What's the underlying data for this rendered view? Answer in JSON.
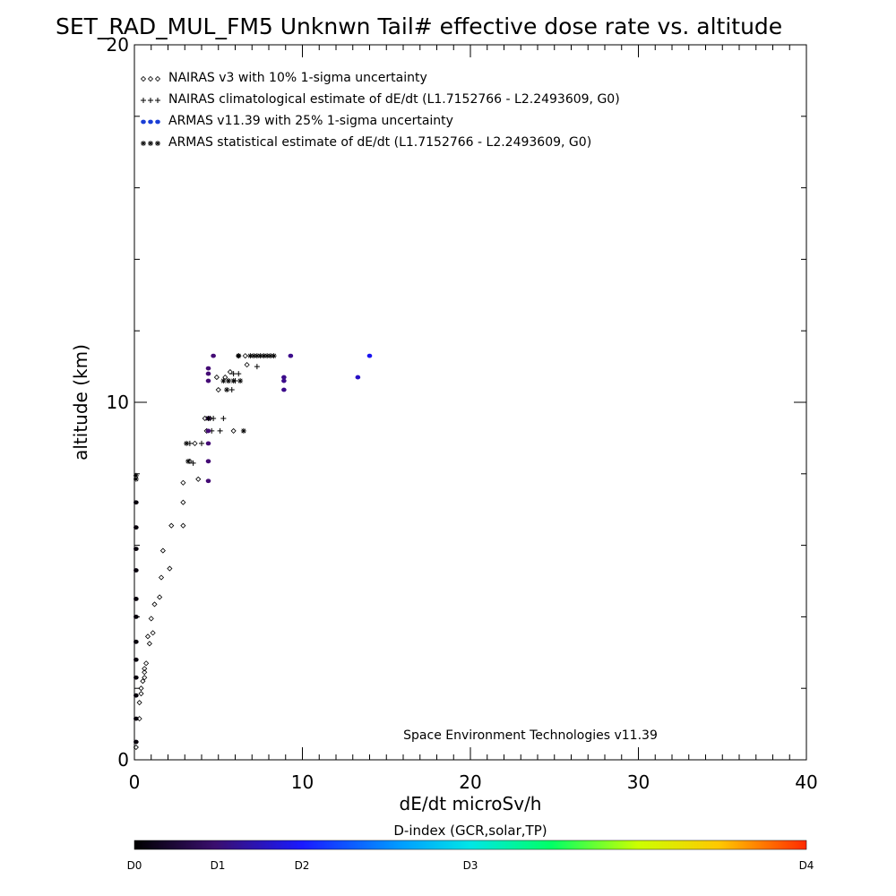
{
  "chart_data": {
    "type": "scatter",
    "title": "SET_RAD_MUL_FM5 Unknwn Tail#  effective dose rate vs. altitude",
    "xlabel": "dE/dt microSv/h",
    "ylabel": "altitude (km)",
    "xlim": [
      0,
      40
    ],
    "ylim": [
      0,
      20
    ],
    "x_ticks": [
      "0",
      "10",
      "20",
      "30",
      "40"
    ],
    "y_ticks": [
      "0",
      "10",
      "20"
    ],
    "grid": false,
    "legend_position": "top-left",
    "credit": "Space Environment Technologies v11.39",
    "colorbar": {
      "title": "D-index (GCR,solar,TP)",
      "ticks": [
        {
          "label": "D0",
          "value": 0
        },
        {
          "label": "D1",
          "value": 1
        },
        {
          "label": "D2",
          "value": 2
        },
        {
          "label": "D3",
          "value": 3
        },
        {
          "label": "D4",
          "value": 4
        }
      ]
    },
    "series": [
      {
        "name": "NAIRAS v3 with 10% 1-sigma uncertainty",
        "marker": "diamond",
        "color": "#000000",
        "points": [
          [
            0.1,
            0.35
          ],
          [
            0.3,
            1.15
          ],
          [
            0.3,
            1.6
          ],
          [
            0.4,
            1.85
          ],
          [
            0.4,
            2.0
          ],
          [
            0.5,
            2.2
          ],
          [
            0.6,
            2.3
          ],
          [
            0.6,
            2.45
          ],
          [
            0.6,
            2.55
          ],
          [
            0.7,
            2.7
          ],
          [
            0.9,
            3.25
          ],
          [
            0.8,
            3.45
          ],
          [
            1.1,
            3.55
          ],
          [
            1.0,
            3.95
          ],
          [
            1.2,
            4.35
          ],
          [
            1.5,
            4.55
          ],
          [
            1.6,
            5.1
          ],
          [
            2.1,
            5.35
          ],
          [
            1.7,
            5.85
          ],
          [
            2.2,
            6.55
          ],
          [
            2.9,
            6.55
          ],
          [
            2.9,
            7.2
          ],
          [
            2.9,
            7.75
          ],
          [
            3.8,
            7.85
          ],
          [
            3.3,
            8.35
          ],
          [
            3.6,
            8.85
          ],
          [
            4.3,
            9.2
          ],
          [
            4.2,
            9.55
          ],
          [
            5.0,
            10.35
          ],
          [
            4.9,
            10.7
          ],
          [
            5.4,
            10.7
          ],
          [
            5.7,
            10.85
          ],
          [
            5.9,
            9.2
          ],
          [
            6.2,
            11.3
          ],
          [
            6.6,
            11.3
          ],
          [
            6.7,
            11.05
          ],
          [
            4.5,
            9.55
          ]
        ]
      },
      {
        "name": "NAIRAS climatological estimate of dE/dt (L1.7152766 - L2.2493609, G0)",
        "marker": "plus",
        "color": "#000000",
        "points": [
          [
            3.5,
            8.3
          ],
          [
            3.3,
            8.85
          ],
          [
            4.0,
            8.85
          ],
          [
            4.6,
            9.2
          ],
          [
            5.1,
            9.2
          ],
          [
            4.7,
            9.55
          ],
          [
            5.3,
            9.55
          ],
          [
            5.8,
            10.35
          ],
          [
            5.6,
            10.6
          ],
          [
            6.0,
            10.6
          ],
          [
            6.2,
            10.8
          ],
          [
            5.9,
            10.8
          ],
          [
            7.3,
            11.0
          ]
        ]
      },
      {
        "name": "ARMAS v11.39 with 25% 1-sigma uncertainty",
        "marker": "dot",
        "color": "#1a3ed6",
        "points": [
          [
            0.1,
            7.2
          ],
          [
            0.1,
            6.5
          ],
          [
            0.1,
            5.9
          ],
          [
            0.1,
            5.3
          ],
          [
            0.1,
            4.5
          ],
          [
            0.1,
            4.0
          ],
          [
            0.1,
            3.3
          ],
          [
            0.1,
            2.8
          ],
          [
            0.1,
            2.3
          ],
          [
            0.1,
            1.8
          ],
          [
            0.1,
            1.15
          ],
          [
            0.1,
            0.5
          ],
          [
            4.4,
            7.8
          ],
          [
            4.4,
            8.35
          ],
          [
            4.4,
            8.85
          ],
          [
            4.4,
            9.2
          ],
          [
            4.4,
            9.55
          ],
          [
            4.4,
            10.6
          ],
          [
            4.4,
            10.8
          ],
          [
            4.4,
            10.95
          ],
          [
            4.7,
            11.3
          ],
          [
            8.9,
            10.35
          ],
          [
            8.9,
            10.6
          ],
          [
            8.9,
            10.7
          ],
          [
            9.3,
            11.3
          ],
          [
            13.3,
            10.7
          ],
          [
            14.0,
            11.3
          ]
        ],
        "d_index": [
          0.1,
          0.1,
          0.1,
          0.1,
          0.1,
          0.1,
          0.1,
          0.1,
          0.1,
          0.1,
          0.1,
          0.1,
          1.05,
          1.05,
          1.05,
          1.05,
          1.05,
          1.05,
          1.05,
          1.05,
          1.05,
          1.2,
          1.2,
          1.2,
          1.2,
          1.6,
          1.9
        ]
      },
      {
        "name": "ARMAS statistical estimate of dE/dt (L1.7152766 - L2.2493609, G0)",
        "marker": "asterisk",
        "color": "#000000",
        "points": [
          [
            0.1,
            7.95
          ],
          [
            0.1,
            7.85
          ],
          [
            3.1,
            8.85
          ],
          [
            3.2,
            8.35
          ],
          [
            4.4,
            9.55
          ],
          [
            5.5,
            10.35
          ],
          [
            5.3,
            10.6
          ],
          [
            5.6,
            10.6
          ],
          [
            5.9,
            10.6
          ],
          [
            6.3,
            10.6
          ],
          [
            6.5,
            9.2
          ],
          [
            6.2,
            11.3
          ],
          [
            6.9,
            11.3
          ],
          [
            7.1,
            11.3
          ],
          [
            7.3,
            11.3
          ],
          [
            7.5,
            11.3
          ],
          [
            7.7,
            11.3
          ],
          [
            7.9,
            11.3
          ],
          [
            8.1,
            11.3
          ],
          [
            8.3,
            11.3
          ]
        ]
      }
    ]
  }
}
